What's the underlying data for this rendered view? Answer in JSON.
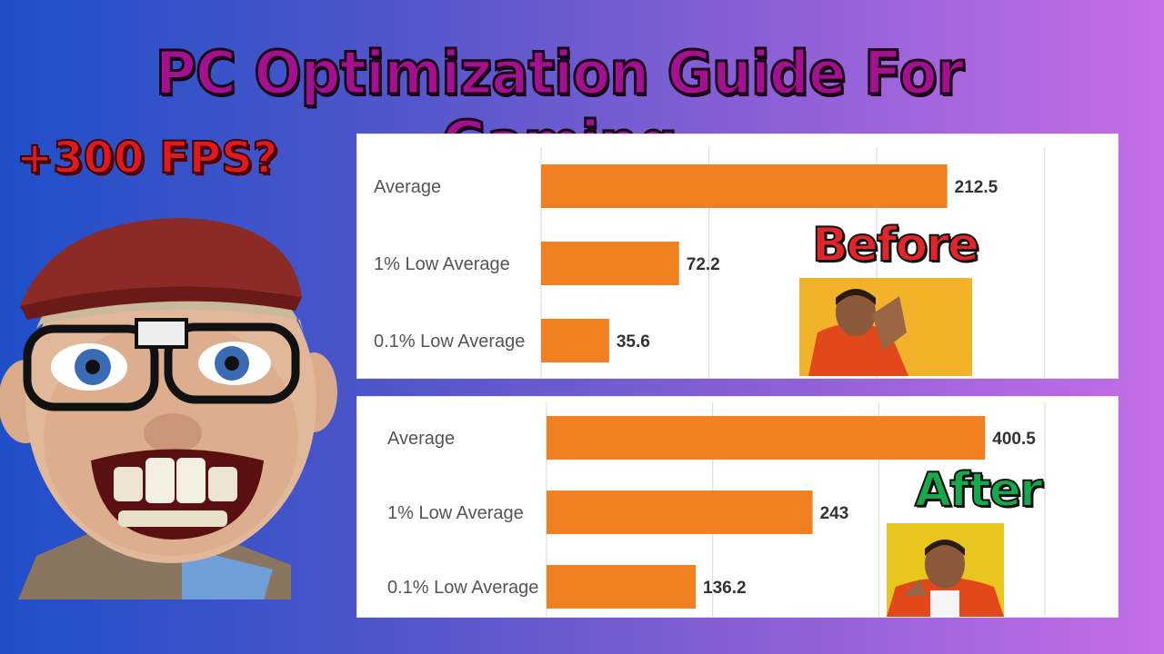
{
  "title": "PC Optimization Guide For Gaming",
  "subtitle": "+300 FPS?",
  "labels": {
    "before": "Before",
    "after": "After"
  },
  "icons": {
    "character": "cartoon-character-icon",
    "before_photo": "disapproving-person-icon",
    "after_photo": "approving-person-icon"
  },
  "colors": {
    "bar": "#f08020",
    "title": "#a3118f",
    "subtitle": "#e0191f",
    "before": "#e0252b",
    "after": "#17a84d"
  },
  "chart_data": [
    {
      "type": "bar",
      "orientation": "horizontal",
      "categories": [
        "Average",
        "1% Low Average",
        "0.1% Low Average"
      ],
      "values": [
        212.5,
        72.2,
        35.6
      ],
      "xlim": [
        0,
        275
      ],
      "grid": true,
      "annotation": "Before"
    },
    {
      "type": "bar",
      "orientation": "horizontal",
      "categories": [
        "Average",
        "1% Low Average",
        "0.1% Low Average"
      ],
      "values": [
        400.5,
        243,
        136.2
      ],
      "xlim": [
        0,
        475
      ],
      "grid": true,
      "annotation": "After"
    }
  ]
}
